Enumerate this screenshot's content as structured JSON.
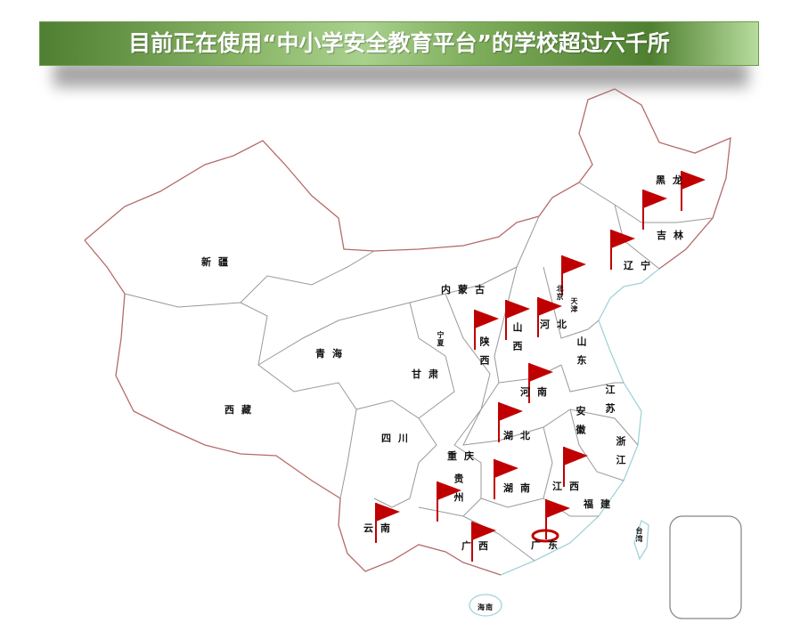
{
  "title": "目前正在使用“中小学安全教育平台”的学校超过六千所",
  "colors": {
    "flag": "#c00000",
    "border": "#b56a6a",
    "coast": "#9fd4d8",
    "province": "#999999",
    "title_green": "#6f9f4c"
  },
  "provinces": {
    "xinjiang": "新疆",
    "xizang": "西藏",
    "qinghai": "青海",
    "gansu": "甘肃",
    "ningxia": "宁夏",
    "neimenggu": "内蒙古",
    "shaanxi": "陕西",
    "shanxi": "山西",
    "hebei": "河北",
    "shandong": "山东",
    "henan": "河南",
    "jiangsu": "江苏",
    "anhui": "安徽",
    "hubei": "湖北",
    "zhejiang": "浙江",
    "sichuan": "四川",
    "chongqing": "重庆",
    "guizhou": "贵州",
    "hunan": "湖南",
    "jiangxi": "江西",
    "fujian": "福建",
    "yunnan": "云南",
    "guangxi": "广西",
    "guangdong": "广东",
    "hainan": "海南",
    "taiwan": "台湾",
    "heilongjiang": "黑龙",
    "jilin": "吉林",
    "liaoning": "辽宁",
    "beijing": "北京",
    "tianjin": "天津"
  },
  "flags": [
    "heilongjiang",
    "heilongjiang-2",
    "jilin",
    "beijing",
    "shaanxi",
    "shanxi",
    "hebei",
    "henan",
    "hubei",
    "jiangxi",
    "hunan",
    "guizhou",
    "yunnan",
    "guangxi",
    "guangdong"
  ],
  "highlighted_flag": "guangdong"
}
